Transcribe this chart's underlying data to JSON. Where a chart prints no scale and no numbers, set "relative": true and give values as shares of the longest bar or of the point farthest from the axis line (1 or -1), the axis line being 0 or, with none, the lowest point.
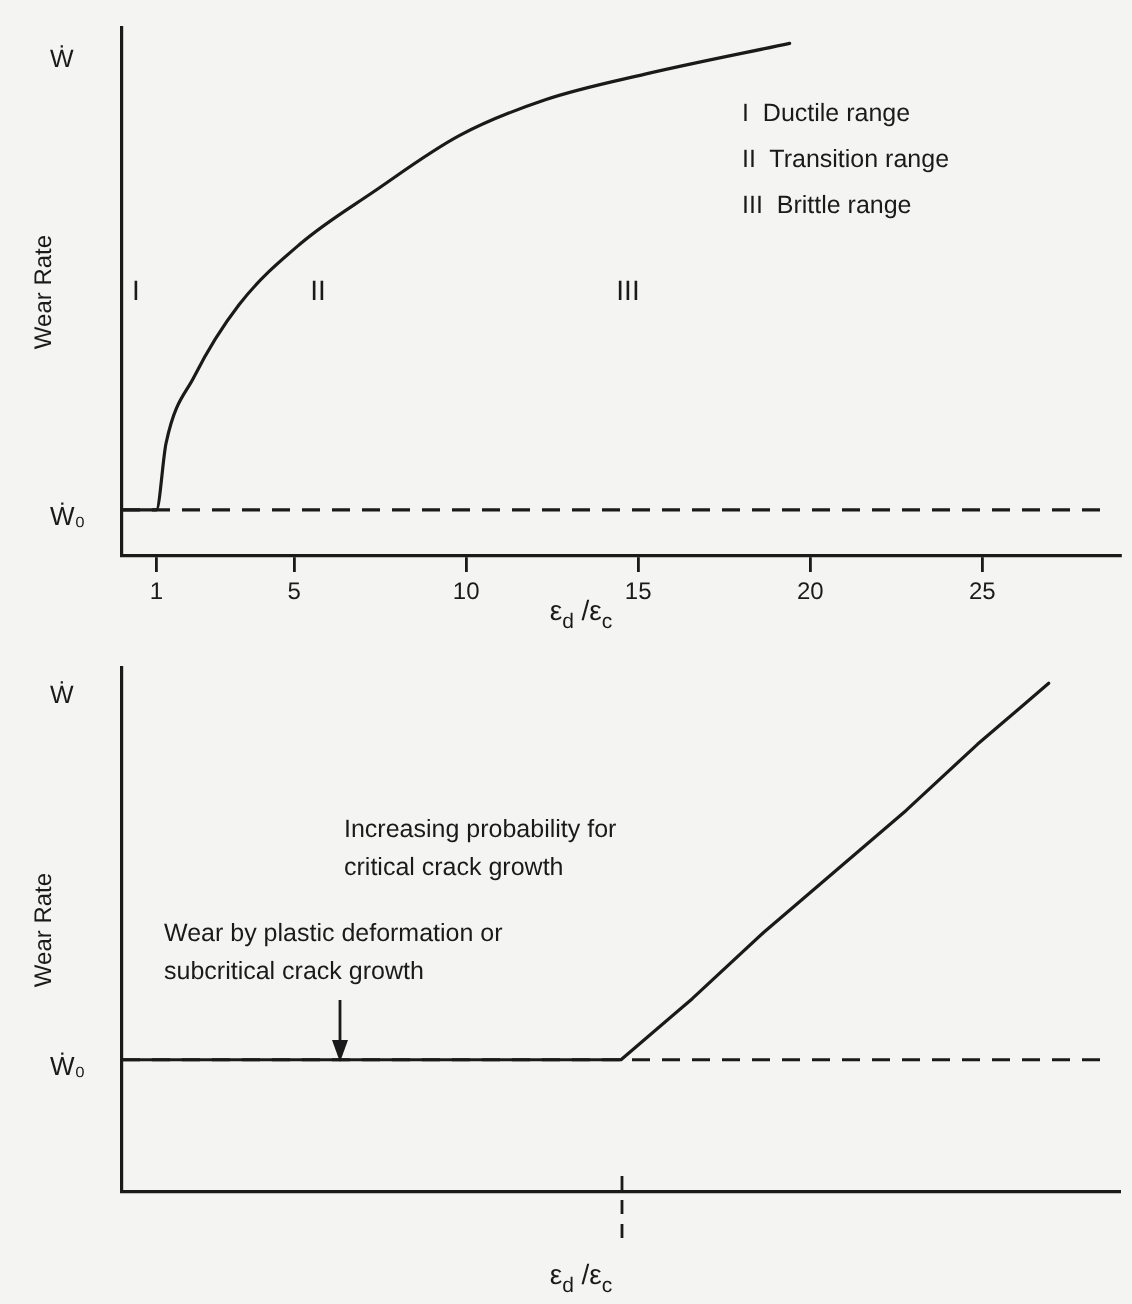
{
  "chart_data": [
    {
      "type": "line",
      "relative": true,
      "ylabel": "Wear Rate",
      "xlabel": "ε$_{d}$ /ε$_{c}$",
      "xlim": [
        0,
        29
      ],
      "xticks": [
        1,
        5,
        10,
        15,
        20,
        25
      ],
      "legend": false,
      "grid": false,
      "marker": "none",
      "line_style": "solid",
      "series": [
        {
          "color": "#1a1a1a",
          "x": [
            0,
            1,
            1.28,
            2.1,
            3.4,
            5.2,
            7.3,
            9.8,
            12.3,
            15.2,
            19.4
          ],
          "values": [
            0.09,
            0.09,
            0.22,
            0.35,
            0.49,
            0.61,
            0.71,
            0.82,
            0.89,
            0.94,
            1.0
          ]
        }
      ],
      "ref_lines": [
        {
          "axis": "y",
          "value": 0.09,
          "label": "Ẇ₀",
          "color": "#1a1a1a",
          "line_style": "dashed"
        }
      ],
      "annotations": [
        "Ẇ",
        "I",
        "II",
        "III",
        "I  Ductile range",
        "II  Transition range",
        "III  Brittle range"
      ]
    },
    {
      "type": "line",
      "relative": true,
      "ylabel": "Wear Rate",
      "xlabel": "ε$_{d}$ /ε$_{c}$",
      "categories": [
        null,
        null,
        null,
        null,
        null,
        null,
        null,
        null,
        null,
        null,
        null,
        null,
        null,
        null,
        null
      ],
      "legend": false,
      "grid": false,
      "marker": "none",
      "line_style": "solid",
      "series": [
        {
          "color": "#1a1a1a",
          "values": [
            0.26,
            0.26,
            0.26,
            0.26,
            0.26,
            0.26,
            0.26,
            0.26,
            0.38,
            0.51,
            0.63,
            0.75,
            0.88,
            1.0,
            null
          ]
        }
      ],
      "ref_lines": [
        {
          "axis": "y",
          "value": 0.26,
          "label": "Ẇ₀",
          "color": "#1a1a1a",
          "line_style": "dashed"
        }
      ],
      "annotations": [
        "Ẇ",
        "Increasing probability for critical crack growth",
        "Wear by plastic deformation or subcritical crack growth"
      ]
    }
  ]
}
